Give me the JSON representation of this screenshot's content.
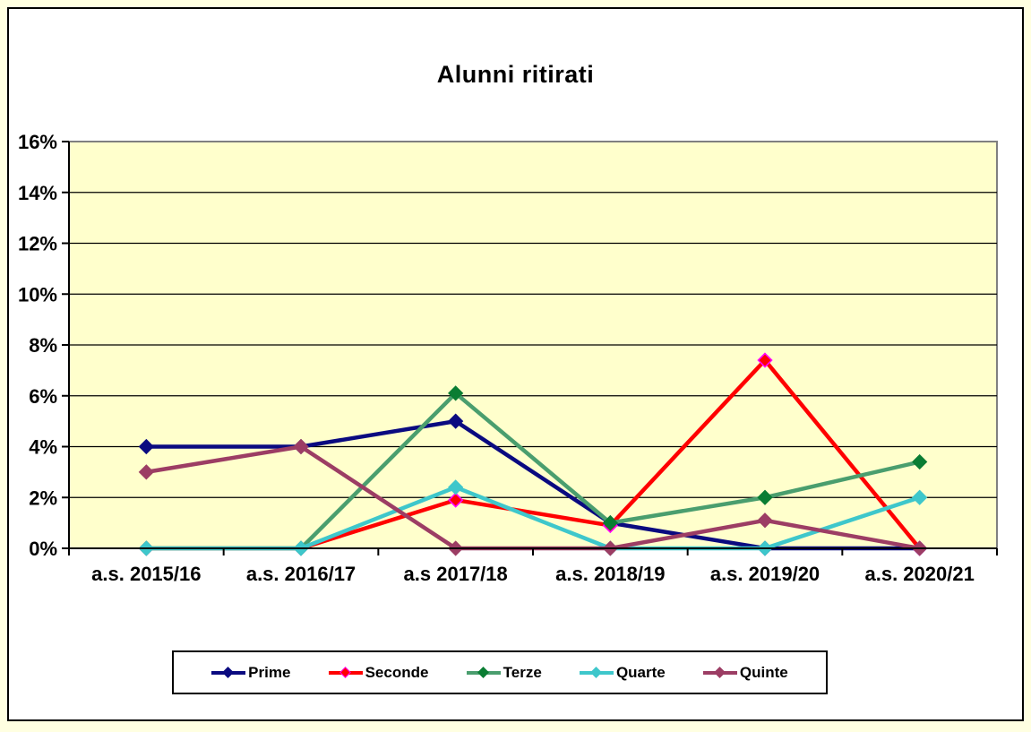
{
  "page": {
    "background": "#FFFFE1",
    "frame_background": "#FFFFFF",
    "frame_border_color": "#000000"
  },
  "chart_data": {
    "type": "line",
    "title": "Alunni ritirati",
    "categories": [
      "a.s. 2015/16",
      "a.s. 2016/17",
      "a.s 2017/18",
      "a.s. 2018/19",
      "a.s. 2019/20",
      "a.s. 2020/21"
    ],
    "series": [
      {
        "name": "Prime",
        "values": [
          4,
          4,
          5,
          1,
          0,
          0
        ],
        "color": "#0A0A80",
        "marker_fill": "#0A0A80",
        "marker_stroke": "#0A0A80"
      },
      {
        "name": "Seconde",
        "values": [
          0,
          0,
          1.9,
          0.9,
          7.4,
          0
        ],
        "color": "#FF0000",
        "marker_fill": "#FF0000",
        "marker_stroke": "#FF00FF"
      },
      {
        "name": "Terze",
        "values": [
          0,
          0,
          6.1,
          1,
          2,
          3.4
        ],
        "color": "#4A9E6E",
        "marker_fill": "#0A7D33",
        "marker_stroke": "#0A7D33"
      },
      {
        "name": "Quarte",
        "values": [
          0,
          0,
          2.4,
          0,
          0,
          2
        ],
        "color": "#3EC7CB",
        "marker_fill": "#3EC7CB",
        "marker_stroke": "#3EC7CB"
      },
      {
        "name": "Quinte",
        "values": [
          3,
          4,
          0,
          0,
          1.1,
          0
        ],
        "color": "#9C3D64",
        "marker_fill": "#9C3D64",
        "marker_stroke": "#9C3D64"
      }
    ],
    "xlabel": "",
    "ylabel": "",
    "ylim": [
      0,
      16
    ],
    "ytick_step": 2,
    "ytick_labels": [
      "0%",
      "2%",
      "4%",
      "6%",
      "8%",
      "10%",
      "12%",
      "14%",
      "16%"
    ],
    "grid": true,
    "plot_background": "#FFFFCC",
    "plot_border_color": "#808080",
    "gridline_color": "#000000",
    "axis_color": "#000000",
    "legend_position": "bottom"
  }
}
